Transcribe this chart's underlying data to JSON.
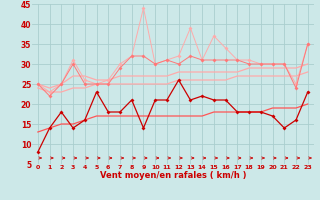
{
  "x": [
    0,
    1,
    2,
    3,
    4,
    5,
    6,
    7,
    8,
    9,
    10,
    11,
    12,
    13,
    14,
    15,
    16,
    17,
    18,
    19,
    20,
    21,
    22,
    23
  ],
  "line_light1": [
    25,
    23,
    25,
    31,
    26,
    25,
    26,
    30,
    32,
    44,
    30,
    31,
    32,
    39,
    31,
    37,
    34,
    31,
    31,
    30,
    30,
    30,
    25,
    35
  ],
  "line_light2": [
    25,
    22,
    25,
    30,
    25,
    25,
    25,
    29,
    32,
    32,
    30,
    31,
    30,
    32,
    31,
    31,
    31,
    31,
    30,
    30,
    30,
    30,
    24,
    35
  ],
  "line_dark": [
    8,
    14,
    18,
    14,
    16,
    23,
    18,
    18,
    21,
    14,
    21,
    21,
    26,
    21,
    22,
    21,
    21,
    18,
    18,
    18,
    17,
    14,
    16,
    23
  ],
  "line_trend_upper": [
    25,
    24,
    25,
    27,
    27,
    26,
    26,
    27,
    27,
    27,
    27,
    27,
    28,
    28,
    28,
    28,
    28,
    28,
    29,
    29,
    29,
    29,
    29,
    30
  ],
  "line_trend_mid": [
    24,
    23,
    23,
    24,
    24,
    25,
    25,
    25,
    25,
    25,
    25,
    25,
    26,
    26,
    26,
    26,
    26,
    27,
    27,
    27,
    27,
    27,
    27,
    28
  ],
  "line_trend_lower": [
    13,
    14,
    15,
    15,
    16,
    17,
    17,
    17,
    17,
    17,
    17,
    17,
    17,
    17,
    17,
    18,
    18,
    18,
    18,
    18,
    19,
    19,
    19,
    20
  ],
  "bg_color": "#cce8e8",
  "grid_color": "#aacece",
  "color_light": "#ffaaaa",
  "color_mid": "#ff7777",
  "color_dark": "#cc0000",
  "color_trend": "#ff5555",
  "xlabel": "Vent moyen/en rafales ( km/h )",
  "xlim": [
    -0.5,
    23.5
  ],
  "ylim": [
    5,
    45
  ],
  "yticks": [
    5,
    10,
    15,
    20,
    25,
    30,
    35,
    40,
    45
  ]
}
